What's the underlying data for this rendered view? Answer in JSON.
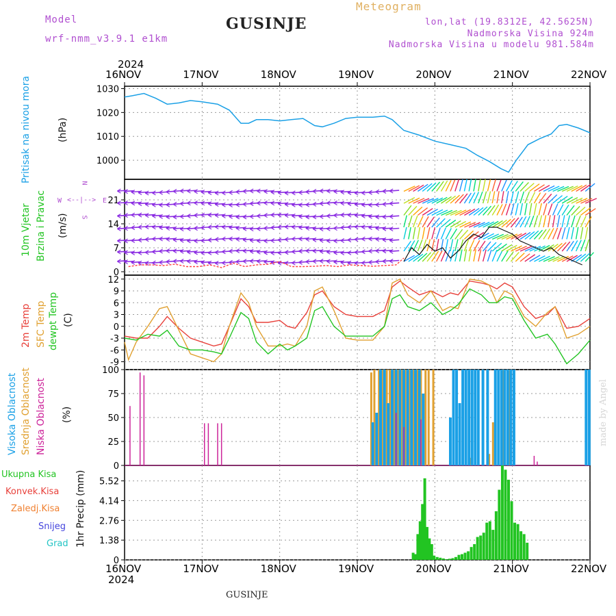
{
  "header": {
    "model_label": "Model",
    "model_name": "wrf-nmm_v3.9.1  e1km",
    "station": "GUSINJE",
    "meteogram_title": "Meteogram",
    "lonlat": "lon,lat (19.8312E, 42.5625N)",
    "altitude": "Nadmorska Visina 924m",
    "model_altitude": "Nadmorska Visina u modelu 981.584m",
    "footer_station": "GUSINJE",
    "credit": "made by Angel"
  },
  "colors": {
    "pressure": "#1aa0e6",
    "temp2m": "#e8403a",
    "sfc_temp": "#e0a030",
    "dewpoint": "#22c422",
    "cloud_high": "#1aa0e6",
    "cloud_mid": "#e0a030",
    "cloud_low": "#cc2299",
    "precip_total": "#22c422",
    "precip_conv": "#e8403a",
    "precip_frz": "#f08030",
    "precip_snow": "#4444dd",
    "precip_hail": "#22c4c4",
    "wind_label": "#22c422",
    "compass": "#b04fd0",
    "header_model": "#b04fd0",
    "meteogram_color": "#e0b060"
  },
  "time_axis": {
    "year": "2024",
    "ticks": [
      "16NOV",
      "17NOV",
      "18NOV",
      "19NOV",
      "20NOV",
      "21NOV",
      "22NOV"
    ]
  },
  "chart_data": [
    {
      "type": "line",
      "name": "pressure",
      "labels": [
        "Pritisak na nivou mora",
        "(hPa)"
      ],
      "yticks": [
        1000,
        1010,
        1020,
        1030
      ],
      "ylim": [
        992,
        1031
      ],
      "x": [
        16.0,
        16.1,
        16.25,
        16.4,
        16.55,
        16.7,
        16.85,
        17.0,
        17.2,
        17.35,
        17.5,
        17.6,
        17.7,
        17.85,
        18.0,
        18.15,
        18.3,
        18.45,
        18.55,
        18.7,
        18.85,
        19.0,
        19.2,
        19.35,
        19.45,
        19.6,
        19.8,
        20.0,
        20.2,
        20.4,
        20.55,
        20.7,
        20.85,
        20.95,
        21.05,
        21.2,
        21.35,
        21.5,
        21.6,
        21.7,
        21.85,
        22.0
      ],
      "values": [
        1026.5,
        1027,
        1028,
        1026,
        1023.5,
        1024,
        1025,
        1024.5,
        1023.5,
        1021,
        1015.5,
        1015.5,
        1017,
        1017,
        1016.5,
        1017,
        1017.5,
        1014.5,
        1014,
        1015.5,
        1017.5,
        1018,
        1018,
        1018.5,
        1017,
        1012.5,
        1010.5,
        1008,
        1006.5,
        1005,
        1002,
        999.5,
        996.5,
        995,
        1000,
        1006.5,
        1009,
        1011,
        1014.5,
        1015,
        1013.5,
        1011.5
      ],
      "grid": true
    },
    {
      "type": "scatter",
      "name": "wind",
      "labels": [
        "10m Vjetar",
        "Brzina i Pravac",
        "(m/s)"
      ],
      "compass": {
        "n": "N",
        "s": "S",
        "e": "E",
        "w": "W"
      },
      "yticks": [
        0,
        7,
        14,
        21
      ],
      "ylim": [
        -1,
        27
      ],
      "gust_x": [
        16.05,
        16.2,
        16.35,
        16.5,
        16.65,
        16.8,
        16.95,
        17.1,
        17.25,
        17.4,
        17.55,
        17.7,
        17.85,
        18.0,
        18.15,
        18.3,
        18.45,
        18.6,
        18.75,
        18.9,
        19.05,
        19.2,
        19.35,
        19.5,
        19.6
      ],
      "gust_values": [
        1.5,
        2,
        2,
        1.8,
        2.2,
        1.5,
        1.5,
        2,
        1.2,
        2.5,
        1.5,
        2,
        2.2,
        3,
        1.5,
        1.5,
        1.6,
        1.8,
        1.5,
        2,
        1.8,
        1.6,
        1.8,
        2,
        4
      ],
      "speed_x": [
        19.6,
        19.7,
        19.8,
        19.9,
        20.0,
        20.1,
        20.2,
        20.3,
        20.4,
        20.5,
        20.6,
        20.7,
        20.8,
        20.9,
        21.0,
        21.1,
        21.2,
        21.3,
        21.4,
        21.5,
        21.6,
        21.7,
        21.8,
        21.9
      ],
      "speed_values": [
        3,
        7,
        5,
        8,
        6,
        7,
        4,
        6,
        9,
        11,
        10,
        13,
        13,
        12,
        11,
        9,
        8,
        7,
        6,
        7,
        5,
        4,
        3,
        2
      ],
      "grid": true
    },
    {
      "type": "line",
      "name": "temperature",
      "labels": [
        "2m Temp",
        "SFC Temp",
        "dewpt Temp",
        "(C)"
      ],
      "yticks": [
        -9,
        -6,
        -3,
        0,
        3,
        6,
        9,
        12
      ],
      "ylim": [
        -11,
        13
      ],
      "series": [
        {
          "name": "2m Temp",
          "x": [
            16.0,
            16.15,
            16.3,
            16.45,
            16.55,
            16.7,
            16.85,
            17.0,
            17.15,
            17.25,
            17.35,
            17.5,
            17.6,
            17.7,
            17.85,
            18.0,
            18.1,
            18.2,
            18.35,
            18.45,
            18.55,
            18.7,
            18.85,
            19.0,
            19.2,
            19.35,
            19.45,
            19.55,
            19.65,
            19.8,
            19.95,
            20.1,
            20.2,
            20.3,
            20.45,
            20.6,
            20.7,
            20.8,
            20.9,
            21.0,
            21.15,
            21.3,
            21.45,
            21.55,
            21.7,
            21.85,
            22.0
          ],
          "values": [
            -2.5,
            -3,
            -3,
            0,
            2.5,
            -0.5,
            -3,
            -4,
            -5,
            -4.5,
            0,
            7,
            5,
            1,
            1,
            1.5,
            0,
            -0.5,
            3.5,
            8,
            9,
            5,
            3,
            2.5,
            2.5,
            4,
            10,
            11.5,
            10,
            8,
            9,
            7.5,
            8.5,
            8,
            11.5,
            11,
            10.5,
            9.5,
            11,
            10,
            5,
            2,
            3,
            5,
            -0.5,
            0,
            2
          ]
        },
        {
          "name": "SFC Temp",
          "x": [
            16.0,
            16.05,
            16.15,
            16.3,
            16.45,
            16.55,
            16.7,
            16.85,
            17.0,
            17.15,
            17.25,
            17.35,
            17.5,
            17.6,
            17.7,
            17.85,
            18.0,
            18.1,
            18.2,
            18.35,
            18.45,
            18.55,
            18.7,
            18.85,
            19.0,
            19.2,
            19.35,
            19.45,
            19.55,
            19.65,
            19.8,
            19.95,
            20.1,
            20.2,
            20.3,
            20.45,
            20.6,
            20.7,
            20.8,
            20.9,
            21.0,
            21.15,
            21.3,
            21.45,
            21.55,
            21.7,
            21.85,
            22.0
          ],
          "values": [
            -4,
            -8.5,
            -4,
            0,
            4.5,
            5,
            -1,
            -7,
            -8,
            -9,
            -7,
            0,
            8.5,
            6,
            0,
            -5,
            -5,
            -4.5,
            -5,
            0,
            9,
            10,
            4,
            -3,
            -3.5,
            -3.5,
            0,
            11,
            12,
            8,
            6,
            9,
            4,
            5,
            4.5,
            12,
            11.5,
            10.5,
            6,
            9,
            8,
            2.5,
            0,
            3.5,
            5,
            -3,
            -2,
            0
          ]
        },
        {
          "name": "dewpt Temp",
          "x": [
            16.0,
            16.15,
            16.3,
            16.45,
            16.55,
            16.7,
            16.85,
            17.0,
            17.15,
            17.25,
            17.35,
            17.5,
            17.6,
            17.7,
            17.85,
            18.0,
            18.1,
            18.2,
            18.35,
            18.45,
            18.55,
            18.7,
            18.85,
            19.0,
            19.2,
            19.35,
            19.45,
            19.55,
            19.65,
            19.8,
            19.95,
            20.1,
            20.2,
            20.3,
            20.45,
            20.6,
            20.7,
            20.8,
            20.9,
            21.0,
            21.15,
            21.3,
            21.45,
            21.55,
            21.7,
            21.85,
            22.0
          ],
          "values": [
            -3,
            -3.5,
            -2,
            -2.5,
            -1,
            -5,
            -6,
            -6,
            -6.5,
            -7,
            -3,
            3.5,
            2,
            -4,
            -7,
            -4.5,
            -6,
            -5,
            -3,
            4,
            5,
            0,
            -2.5,
            -2.5,
            -2.5,
            0,
            7,
            8,
            5,
            4,
            6,
            3,
            4,
            5.5,
            9.5,
            8,
            6,
            6,
            7.5,
            7,
            1.5,
            -3,
            -2,
            -4.5,
            -9.5,
            -7,
            -3.5
          ]
        }
      ],
      "grid": true
    },
    {
      "type": "bar",
      "name": "clouds",
      "labels": [
        "Visoka Oblacnost",
        "Srednja Oblacnost",
        "Niska Oblacnost",
        "(%)"
      ],
      "yticks": [
        0,
        25,
        50,
        75,
        100
      ],
      "ylim": [
        0,
        100
      ],
      "series": [
        {
          "name": "Niska Oblacnost",
          "x": [
            16.07,
            16.2,
            16.25,
            17.03,
            17.08,
            17.2,
            17.25,
            19.5,
            19.6,
            19.82,
            21.28,
            21.32
          ],
          "values": [
            62,
            97,
            94,
            44,
            44,
            44,
            44,
            55,
            40,
            48,
            10,
            4
          ]
        },
        {
          "name": "Srednja Oblacnost",
          "x": [
            19.18,
            19.22,
            19.28,
            19.32,
            19.38,
            19.42,
            19.48,
            19.52,
            19.58,
            19.62,
            19.68,
            19.72,
            19.78,
            19.82,
            19.88,
            19.92,
            19.98,
            20.2,
            20.45,
            20.7,
            20.75,
            20.82,
            20.88,
            20.95
          ],
          "values": [
            97,
            100,
            100,
            100,
            100,
            100,
            100,
            100,
            100,
            100,
            100,
            100,
            100,
            100,
            100,
            100,
            100,
            5,
            8,
            12,
            45,
            100,
            100,
            100
          ]
        },
        {
          "name": "Visoka Oblacnost",
          "x": [
            19.2,
            19.25,
            19.3,
            19.35,
            19.4,
            19.45,
            19.5,
            19.55,
            19.6,
            19.65,
            19.7,
            19.75,
            19.8,
            19.85,
            20.2,
            20.24,
            20.28,
            20.32,
            20.36,
            20.4,
            20.44,
            20.48,
            20.52,
            20.56,
            20.62,
            20.68,
            20.78,
            20.82,
            20.86,
            20.9,
            20.94,
            20.98,
            21.02,
            21.95,
            21.99
          ],
          "values": [
            45,
            55,
            100,
            100,
            65,
            100,
            100,
            100,
            100,
            100,
            100,
            100,
            100,
            75,
            50,
            100,
            100,
            65,
            100,
            100,
            100,
            100,
            100,
            100,
            100,
            100,
            100,
            100,
            100,
            100,
            100,
            100,
            100,
            100,
            100
          ]
        }
      ],
      "grid": true
    },
    {
      "type": "bar",
      "name": "precipitation",
      "labels": [
        "Ukupna Kisa",
        "Konvek.Kisa",
        "Zaledj.Kisa",
        "Snijeg",
        "Grad",
        "1hr Precip (mm)"
      ],
      "yticks": [
        0,
        1.38,
        2.76,
        4.14,
        5.52
      ],
      "ytick_labels": [
        "0",
        "1.38",
        "2.76",
        "4.14",
        "5.52"
      ],
      "ylim": [
        0,
        6.6
      ],
      "x": [
        19.72,
        19.75,
        19.78,
        19.81,
        19.84,
        19.87,
        19.9,
        19.93,
        19.96,
        19.99,
        20.03,
        20.07,
        20.11,
        20.15,
        20.19,
        20.23,
        20.27,
        20.31,
        20.35,
        20.39,
        20.43,
        20.47,
        20.51,
        20.55,
        20.59,
        20.63,
        20.67,
        20.71,
        20.75,
        20.79,
        20.83,
        20.87,
        20.91,
        20.95,
        20.99,
        21.03,
        21.07,
        21.11,
        21.15,
        21.19
      ],
      "values": [
        0.5,
        0.4,
        1.8,
        2.7,
        3.9,
        5.7,
        2.3,
        1.5,
        1.1,
        0.3,
        0.2,
        0.15,
        0.1,
        0.05,
        0.08,
        0.12,
        0.2,
        0.35,
        0.4,
        0.5,
        0.6,
        0.9,
        1.1,
        1.6,
        1.7,
        1.9,
        2.6,
        2.7,
        2.1,
        3.4,
        4.9,
        6.6,
        6.3,
        5.6,
        4.1,
        2.6,
        2.5,
        2.0,
        1.8,
        1.2
      ],
      "grid": true
    }
  ]
}
